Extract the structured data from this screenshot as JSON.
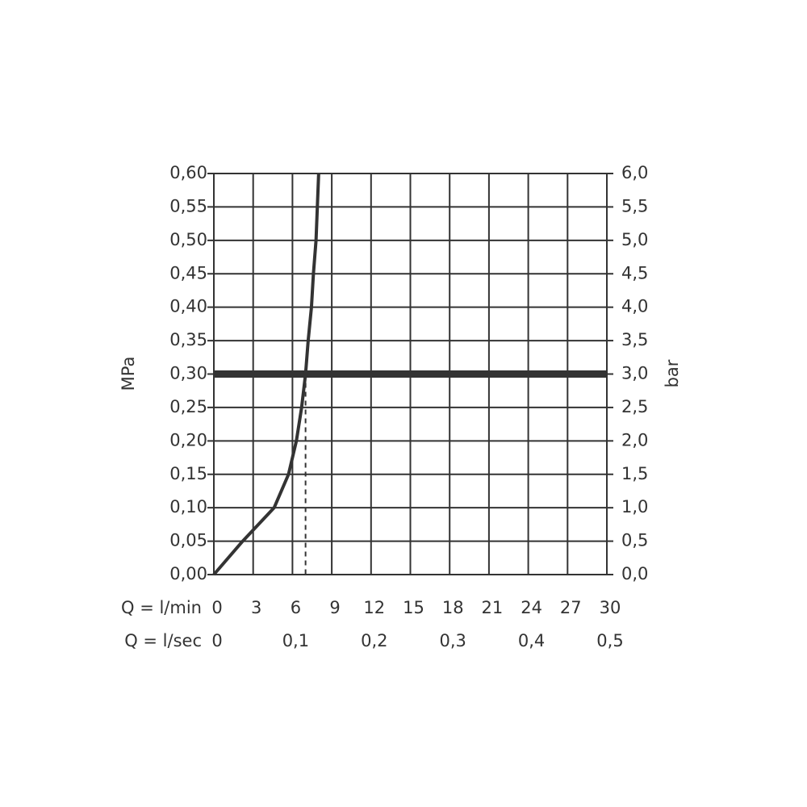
{
  "chart_data": {
    "type": "line",
    "y_label": "MPa",
    "y2_label": "bar",
    "x_label": "Q = l/min",
    "x2_label": "Q = l/sec",
    "x": [
      0,
      2.2,
      4.6,
      5.7,
      6.3,
      6.7,
      7.0,
      7.2,
      7.45,
      7.6,
      7.8,
      8.0
    ],
    "values": [
      0,
      0.05,
      0.1,
      0.15,
      0.2,
      0.25,
      0.3,
      0.35,
      0.4,
      0.45,
      0.5,
      0.6
    ],
    "color": "#333333",
    "xlim": [
      0,
      30
    ],
    "xticks": [
      0,
      3,
      6,
      9,
      12,
      15,
      18,
      21,
      24,
      27,
      30
    ],
    "x2lim": [
      0,
      0.5
    ],
    "x2ticks": [
      0,
      {
        "value": 0.1,
        "label": "0,1"
      },
      {
        "value": 0.2,
        "label": "0,2"
      },
      {
        "value": 0.3,
        "label": "0,3"
      },
      {
        "value": 0.4,
        "label": "0,4"
      },
      {
        "value": 0.5,
        "label": "0,5"
      }
    ],
    "ylim": [
      0,
      0.6
    ],
    "yticks": [
      {
        "value": 0,
        "label": "0,00"
      },
      {
        "value": 0.05,
        "label": "0,05"
      },
      {
        "value": 0.1,
        "label": "0,10"
      },
      {
        "value": 0.15,
        "label": "0,15"
      },
      {
        "value": 0.2,
        "label": "0,20"
      },
      {
        "value": 0.25,
        "label": "0,25"
      },
      {
        "value": 0.3,
        "label": "0,30"
      },
      {
        "value": 0.35,
        "label": "0,35"
      },
      {
        "value": 0.4,
        "label": "0,40"
      },
      {
        "value": 0.45,
        "label": "0,45"
      },
      {
        "value": 0.5,
        "label": "0,50"
      },
      {
        "value": 0.55,
        "label": "0,55"
      },
      {
        "value": 0.6,
        "label": "0,60"
      }
    ],
    "y2lim": [
      0,
      6
    ],
    "y2ticks": [
      {
        "value": 0,
        "label": "0,0"
      },
      {
        "value": 0.5,
        "label": "0,5"
      },
      {
        "value": 1,
        "label": "1,0"
      },
      {
        "value": 1.5,
        "label": "1,5"
      },
      {
        "value": 2,
        "label": "2,0"
      },
      {
        "value": 2.5,
        "label": "2,5"
      },
      {
        "value": 3,
        "label": "3,0"
      },
      {
        "value": 3.5,
        "label": "3,5"
      },
      {
        "value": 4,
        "label": "4,0"
      },
      {
        "value": 4.5,
        "label": "4,5"
      },
      {
        "value": 5,
        "label": "5,0"
      },
      {
        "value": 5.5,
        "label": "5,5"
      },
      {
        "value": 6,
        "label": "6,0"
      }
    ],
    "grid": true,
    "reference_line": {
      "y": 0.3
    },
    "dashed_drop": {
      "x": 7.0,
      "y": 0.3
    }
  }
}
